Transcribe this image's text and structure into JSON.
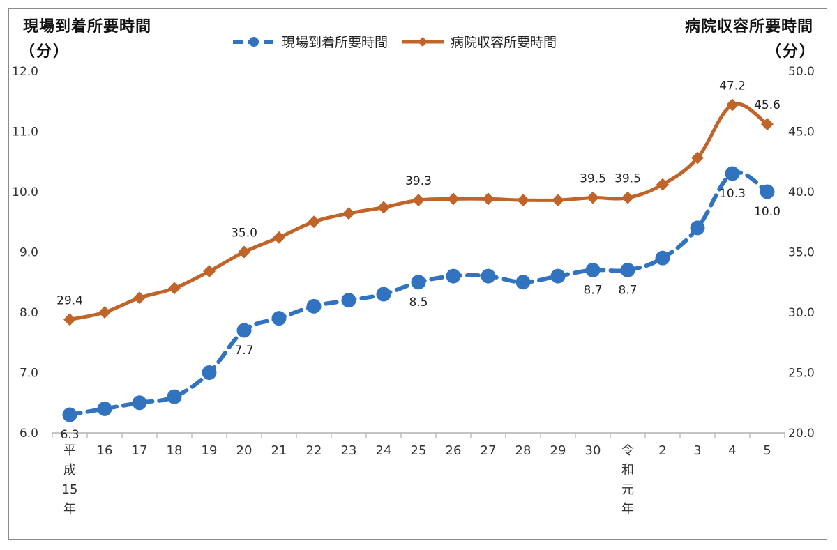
{
  "left_axis": {
    "title": "現場到着所要時間",
    "unit": "（分）"
  },
  "right_axis": {
    "title": "病院収容所要時間",
    "unit": "（分）"
  },
  "legend": {
    "series1": "現場到着所要時間",
    "series2": "病院収容所要時間"
  },
  "chart_data": {
    "type": "line",
    "categories": [
      "平成15年",
      "16",
      "17",
      "18",
      "19",
      "20",
      "21",
      "22",
      "23",
      "24",
      "25",
      "26",
      "27",
      "28",
      "29",
      "30",
      "令和元年",
      "2",
      "3",
      "4",
      "5"
    ],
    "series": [
      {
        "name": "現場到着所要時間",
        "axis": "left",
        "color": "#3273c0",
        "style": "dashed-circle",
        "values": [
          6.3,
          6.4,
          6.5,
          6.6,
          7.0,
          7.7,
          7.9,
          8.1,
          8.2,
          8.3,
          8.5,
          8.6,
          8.6,
          8.5,
          8.6,
          8.7,
          8.7,
          8.9,
          9.4,
          10.3,
          10.0
        ],
        "labels": {
          "0": "6.3",
          "5": "7.7",
          "10": "8.5",
          "15": "8.7",
          "16": "8.7",
          "19": "10.3",
          "20": "10.0"
        }
      },
      {
        "name": "病院収容所要時間",
        "axis": "right",
        "color": "#c0642a",
        "style": "solid-diamond",
        "values": [
          29.4,
          30.0,
          31.2,
          32.0,
          33.4,
          35.0,
          36.2,
          37.5,
          38.2,
          38.7,
          39.3,
          39.4,
          39.4,
          39.3,
          39.3,
          39.5,
          39.5,
          40.6,
          42.8,
          47.2,
          45.6
        ],
        "labels": {
          "0": "29.4",
          "5": "35.0",
          "10": "39.3",
          "15": "39.5",
          "16": "39.5",
          "19": "47.2",
          "20": "45.6"
        }
      }
    ],
    "y_left": {
      "range": [
        6.0,
        12.0
      ],
      "ticks": [
        "6.0",
        "7.0",
        "8.0",
        "9.0",
        "10.0",
        "11.0",
        "12.0"
      ]
    },
    "y_right": {
      "range": [
        20.0,
        50.0
      ],
      "ticks": [
        "20.0",
        "25.0",
        "30.0",
        "35.0",
        "40.0",
        "45.0",
        "50.0"
      ]
    },
    "grid": false
  }
}
